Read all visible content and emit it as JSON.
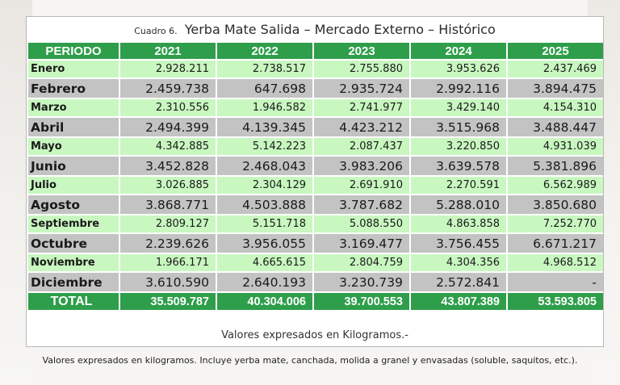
{
  "table": {
    "label": "Cuadro 6.",
    "title": "Yerba Mate Salida  – Mercado Externo – Histórico",
    "headers": [
      "PERIODO",
      "2021",
      "2022",
      "2023",
      "2024",
      "2025"
    ],
    "rows": [
      {
        "mes": "Enero",
        "values": [
          "2.928.211",
          "2.738.517",
          "2.755.880",
          "3.953.626",
          "2.437.469"
        ]
      },
      {
        "mes": "Febrero",
        "values": [
          "2.459.738",
          "647.698",
          "2.935.724",
          "2.992.116",
          "3.894.475"
        ]
      },
      {
        "mes": "Marzo",
        "values": [
          "2.310.556",
          "1.946.582",
          "2.741.977",
          "3.429.140",
          "4.154.310"
        ]
      },
      {
        "mes": "Abril",
        "values": [
          "2.494.399",
          "4.139.345",
          "4.423.212",
          "3.515.968",
          "3.488.447"
        ]
      },
      {
        "mes": "Mayo",
        "values": [
          "4.342.885",
          "5.142.223",
          "2.087.437",
          "3.220.850",
          "4.931.039"
        ]
      },
      {
        "mes": "Junio",
        "values": [
          "3.452.828",
          "2.468.043",
          "3.983.206",
          "3.639.578",
          "5.381.896"
        ]
      },
      {
        "mes": "Julio",
        "values": [
          "3.026.885",
          "2.304.129",
          "2.691.910",
          "2.270.591",
          "6.562.989"
        ]
      },
      {
        "mes": "Agosto",
        "values": [
          "3.868.771",
          "4.503.888",
          "3.787.682",
          "5.288.010",
          "3.850.680"
        ]
      },
      {
        "mes": "Septiembre",
        "values": [
          "2.809.127",
          "5.151.718",
          "5.088.550",
          "4.863.858",
          "7.252.770"
        ]
      },
      {
        "mes": "Octubre",
        "values": [
          "2.239.626",
          "3.956.055",
          "3.169.477",
          "3.756.455",
          "6.671.217"
        ]
      },
      {
        "mes": "Noviembre",
        "values": [
          "1.966.171",
          "4.665.615",
          "2.804.759",
          "4.304.356",
          "4.968.512"
        ]
      },
      {
        "mes": "Diciembre",
        "values": [
          "3.610.590",
          "2.640.193",
          "3.230.739",
          "2.572.841",
          "-"
        ]
      }
    ],
    "total": {
      "mes": "TOTAL",
      "values": [
        "35.509.787",
        "40.304.006",
        "39.700.553",
        "43.807.389",
        "53.593.805"
      ]
    },
    "note": "Valores expresados en Kilogramos.-"
  },
  "caption": "Valores expresados en kilogramos. Incluye yerba mate, canchada, molida a granel y envasadas (soluble, saquitos, etc.).",
  "colors": {
    "header_green": "#2e9e4a",
    "row_light_green": "#c8f7c0",
    "row_gray": "#c3c3c3"
  }
}
